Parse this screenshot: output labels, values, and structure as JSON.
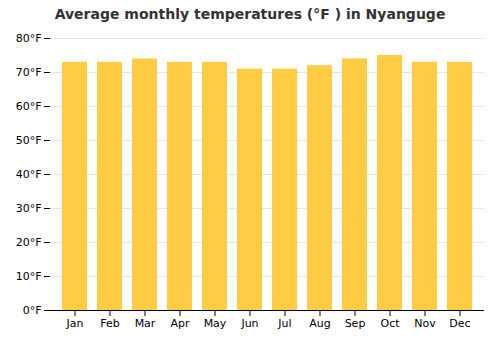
{
  "chart_data": {
    "type": "bar",
    "title": "Average monthly temperatures (°F ) in Nyanguge",
    "categories": [
      "Jan",
      "Feb",
      "Mar",
      "Apr",
      "May",
      "Jun",
      "Jul",
      "Aug",
      "Sep",
      "Oct",
      "Nov",
      "Dec"
    ],
    "values": [
      73,
      73,
      74,
      73,
      73,
      71,
      71,
      72,
      74,
      75,
      73,
      73
    ],
    "color": "#FFCC44",
    "ylim": [
      0,
      80
    ],
    "yticks": [
      {
        "value": 0,
        "label": "0°F"
      },
      {
        "value": 10,
        "label": "10°F"
      },
      {
        "value": 20,
        "label": "20°F"
      },
      {
        "value": 30,
        "label": "30°F"
      },
      {
        "value": 40,
        "label": "40°F"
      },
      {
        "value": 50,
        "label": "50°F"
      },
      {
        "value": 60,
        "label": "60°F"
      },
      {
        "value": 70,
        "label": "70°F"
      },
      {
        "value": 80,
        "label": "80°F"
      }
    ],
    "grid": true
  }
}
